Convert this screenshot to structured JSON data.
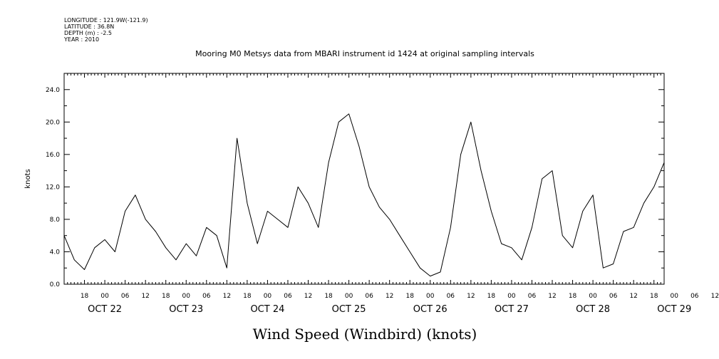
{
  "metadata": {
    "longitude": "LONGITUDE : 121.9W(-121.9)",
    "latitude": "LATITUDE : 36.8N",
    "depth": "DEPTH (m) : -2.5",
    "year": "YEAR : 2010"
  },
  "chart_data": {
    "type": "line",
    "title": "Mooring M0 Metsys data from MBARI instrument id 1424 at original sampling intervals",
    "xlabel": "Wind Speed (Windbird) (knots)",
    "ylabel": "knots",
    "ylim": [
      0,
      26.0
    ],
    "xlim": [
      "2010-10-22 12:00",
      "2010-10-29 21:00"
    ],
    "grid": false,
    "y_ticks": [
      "0.0",
      "4.0",
      "8.0",
      "12.0",
      "16.0",
      "20.0",
      "24.0"
    ],
    "x_hour_ticks": [
      "18",
      "00",
      "06",
      "12",
      "18",
      "00",
      "06",
      "12",
      "18",
      "00",
      "06",
      "12",
      "18",
      "00",
      "06",
      "12",
      "18",
      "00",
      "06",
      "12",
      "18",
      "00",
      "06",
      "12",
      "18",
      "00",
      "06",
      "12",
      "18",
      "00",
      "06",
      "12"
    ],
    "x_day_labels": [
      "OCT 22",
      "OCT 23",
      "OCT 24",
      "OCT 25",
      "OCT 26",
      "OCT 27",
      "OCT 28",
      "OCT 29"
    ],
    "series": [
      {
        "x": [
          "2010-10-22 12:00",
          "2010-10-22 15:00",
          "2010-10-22 18:00",
          "2010-10-22 21:00",
          "2010-10-23 00:00",
          "2010-10-23 03:00",
          "2010-10-23 06:00",
          "2010-10-23 09:00",
          "2010-10-23 12:00",
          "2010-10-23 15:00",
          "2010-10-23 18:00",
          "2010-10-23 21:00",
          "2010-10-24 00:00",
          "2010-10-24 03:00",
          "2010-10-24 06:00",
          "2010-10-24 09:00",
          "2010-10-24 12:00",
          "2010-10-24 15:00",
          "2010-10-24 18:00",
          "2010-10-24 21:00",
          "2010-10-25 00:00",
          "2010-10-25 03:00",
          "2010-10-25 06:00",
          "2010-10-25 09:00",
          "2010-10-25 12:00",
          "2010-10-25 15:00",
          "2010-10-25 18:00",
          "2010-10-25 21:00",
          "2010-10-26 00:00",
          "2010-10-26 03:00",
          "2010-10-26 06:00",
          "2010-10-26 09:00",
          "2010-10-26 12:00",
          "2010-10-26 15:00",
          "2010-10-26 18:00",
          "2010-10-26 21:00",
          "2010-10-27 00:00",
          "2010-10-27 03:00",
          "2010-10-27 06:00",
          "2010-10-27 09:00",
          "2010-10-27 12:00",
          "2010-10-27 15:00",
          "2010-10-27 18:00",
          "2010-10-27 21:00",
          "2010-10-28 00:00",
          "2010-10-28 03:00",
          "2010-10-28 06:00",
          "2010-10-28 09:00",
          "2010-10-28 12:00",
          "2010-10-28 15:00",
          "2010-10-28 18:00",
          "2010-10-28 21:00",
          "2010-10-29 00:00",
          "2010-10-29 03:00",
          "2010-10-29 06:00",
          "2010-10-29 09:00",
          "2010-10-29 12:00",
          "2010-10-29 15:00",
          "2010-10-29 18:00",
          "2010-10-29 21:00"
        ],
        "values": [
          6.0,
          3.0,
          1.8,
          4.5,
          5.5,
          4.0,
          9.0,
          11.0,
          8.0,
          6.5,
          4.5,
          3.0,
          5.0,
          3.5,
          7.0,
          6.0,
          2.0,
          18.0,
          10.0,
          5.0,
          9.0,
          8.0,
          7.0,
          12.0,
          10.0,
          7.0,
          15.0,
          20.0,
          21.0,
          17.0,
          12.0,
          9.5,
          8.0,
          6.0,
          4.0,
          2.0,
          1.0,
          1.5,
          7.0,
          16.0,
          20.0,
          14.0,
          9.0,
          5.0,
          4.5,
          3.0,
          7.0,
          13.0,
          14.0,
          6.0,
          4.5,
          9.0,
          11.0,
          2.0,
          2.5,
          6.5,
          7.0,
          10.0,
          12.0,
          15.0
        ]
      }
    ]
  }
}
